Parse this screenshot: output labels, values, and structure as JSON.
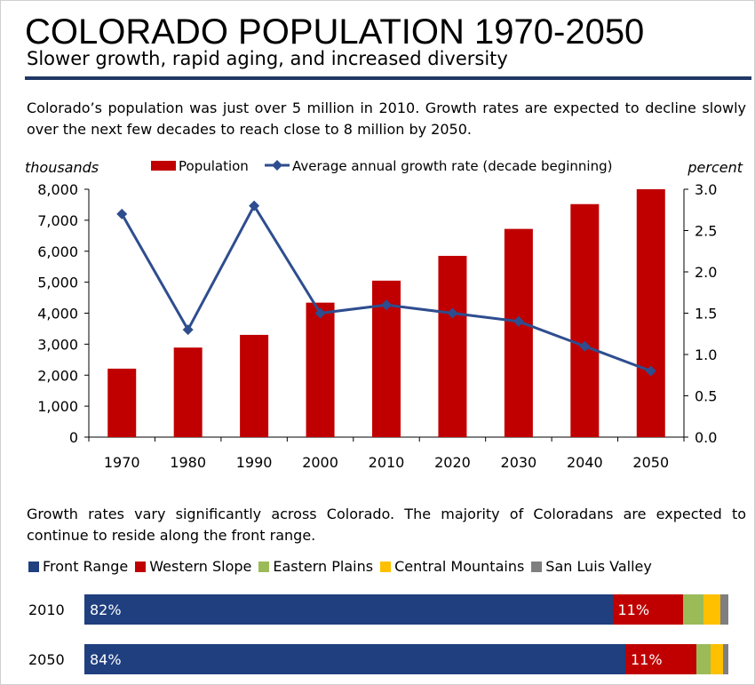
{
  "header": {
    "title": "COLORADO POPULATION 1970-2050",
    "subtitle": "Slower growth, rapid aging, and increased diversity"
  },
  "intro_text": "Colorado’s population was just over 5 million in 2010. Growth rates are expected to decline slowly over the next few decades to reach close to 8 million by 2050.",
  "growth_text": "Growth rates vary significantly across Colorado. The majority of Coloradans are expected to continue to reside along the front range.",
  "colors": {
    "population": "#c00000",
    "growth": "#2e4d8f",
    "rule": "#1f3864"
  },
  "chart_data": [
    {
      "type": "bar+line",
      "categories": [
        "1970",
        "1980",
        "1990",
        "2000",
        "2010",
        "2020",
        "2030",
        "2040",
        "2050"
      ],
      "series": [
        {
          "name": "Population",
          "type": "bar",
          "axis": "left",
          "values": [
            2210,
            2890,
            3300,
            4340,
            5050,
            5850,
            6720,
            7520,
            8000
          ]
        },
        {
          "name": "Average annual growth rate (decade beginning)",
          "type": "line",
          "axis": "right",
          "values": [
            2.7,
            1.3,
            2.8,
            1.5,
            1.6,
            1.5,
            1.4,
            1.1,
            0.8
          ]
        }
      ],
      "left_axis": {
        "label": "thousands",
        "ylim": [
          0,
          8000
        ],
        "ticks": [
          "0",
          "1,000",
          "2,000",
          "3,000",
          "4,000",
          "5,000",
          "6,000",
          "7,000",
          "8,000"
        ]
      },
      "right_axis": {
        "label": "percent",
        "ylim": [
          0,
          3.0
        ],
        "ticks": [
          "0.0",
          "0.5",
          "1.0",
          "1.5",
          "2.0",
          "2.5",
          "3.0"
        ]
      },
      "legend_position": "top",
      "grid": false
    },
    {
      "type": "bar",
      "stacked": true,
      "orientation": "horizontal",
      "categories": [
        "2010",
        "2050"
      ],
      "series": [
        {
          "name": "Front Range",
          "color": "#1f3f7f",
          "values": [
            82,
            84
          ],
          "labels": [
            "82%",
            "84%"
          ]
        },
        {
          "name": "Western Slope",
          "color": "#c00000",
          "values": [
            11,
            11
          ],
          "labels": [
            "11%",
            "11%"
          ]
        },
        {
          "name": "Eastern Plains",
          "color": "#9bbb59",
          "values": [
            3.2,
            2.3
          ],
          "labels": [
            "",
            ""
          ]
        },
        {
          "name": "Central Mountains",
          "color": "#ffc000",
          "values": [
            2.6,
            1.9
          ],
          "labels": [
            "",
            ""
          ]
        },
        {
          "name": "San Luis Valley",
          "color": "#7f7f7f",
          "values": [
            1.2,
            0.8
          ],
          "labels": [
            "",
            ""
          ]
        }
      ],
      "legend_position": "top"
    }
  ]
}
